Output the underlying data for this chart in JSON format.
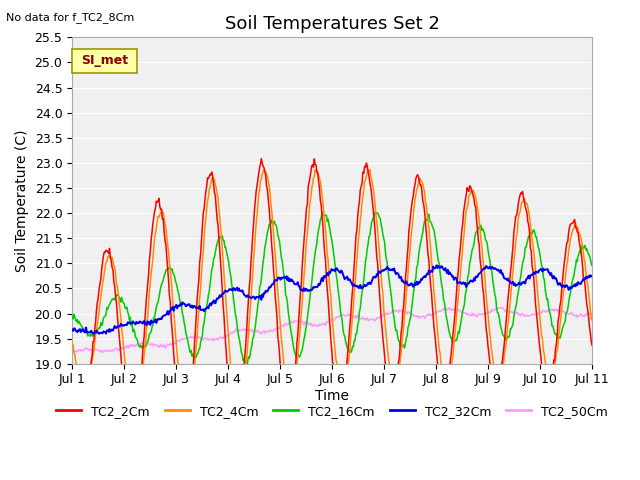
{
  "title": "Soil Temperatures Set 2",
  "ylabel": "Soil Temperature (C)",
  "xlabel": "Time",
  "note": "No data for f_TC2_8Cm",
  "ylim": [
    19.0,
    25.5
  ],
  "xlim": [
    0,
    10
  ],
  "x_tick_labels": [
    "Jul 1",
    "Jul 2",
    "Jul 3",
    "Jul 4",
    "Jul 5",
    "Jul 6",
    "Jul 7",
    "Jul 8",
    "Jul 9",
    "Jul 10",
    "Jul 11"
  ],
  "x_ticks": [
    0,
    1,
    2,
    3,
    4,
    5,
    6,
    7,
    8,
    9,
    10
  ],
  "legend_label": "SI_met",
  "series_colors": {
    "TC2_2Cm": "#FF0000",
    "TC2_4Cm": "#FF8C00",
    "TC2_16Cm": "#00CC00",
    "TC2_32Cm": "#0000EE",
    "TC2_50Cm": "#FF99FF"
  },
  "background_color": "#ffffff",
  "plot_bg_color": "#f0f0f0",
  "grid_color": "#ffffff",
  "title_fontsize": 13,
  "axis_fontsize": 9,
  "label_fontsize": 10,
  "si_box_facecolor": "#FFFFAA",
  "si_box_edgecolor": "#999900",
  "si_text_color": "#880000",
  "note_fontsize": 8,
  "legend_fontsize": 9
}
